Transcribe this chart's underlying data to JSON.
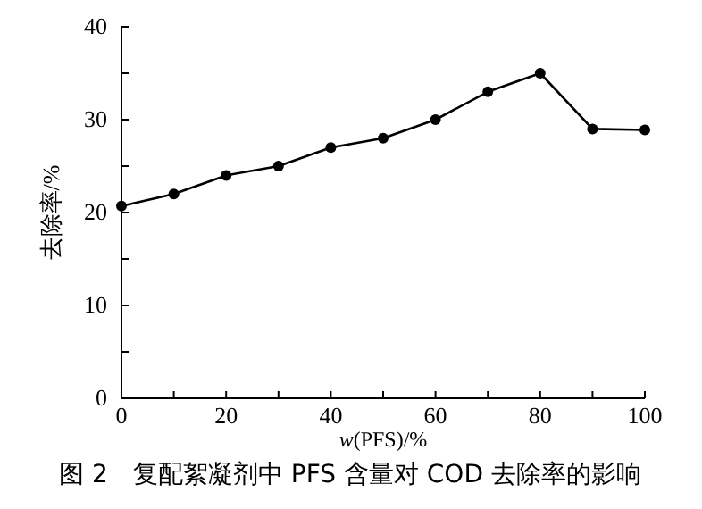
{
  "chart_data": {
    "type": "line",
    "x": [
      0,
      10,
      20,
      30,
      40,
      50,
      60,
      70,
      80,
      90,
      100
    ],
    "series": [
      {
        "color": "#000000",
        "values": [
          20.7,
          22,
          24,
          25,
          27,
          28,
          30,
          33,
          35,
          29,
          28.9
        ]
      }
    ],
    "xlim": [
      0,
      100
    ],
    "ylim": [
      0,
      40
    ],
    "xticks": [
      0,
      {
        "value": 10,
        "label": null
      },
      20,
      {
        "value": 30,
        "label": null
      },
      40,
      {
        "value": 50,
        "label": null
      },
      60,
      {
        "value": 70,
        "label": null
      },
      80,
      {
        "value": 90,
        "label": null
      },
      100
    ],
    "yticks": [
      0,
      {
        "value": 5,
        "label": null
      },
      10,
      {
        "value": 15,
        "label": null
      },
      20,
      {
        "value": 25,
        "label": null
      },
      30,
      {
        "value": 35,
        "label": null
      },
      40
    ],
    "xlabel": "w(PFS)/%",
    "ylabel": "去除率/%",
    "annotations": [
      "图 2　复配絮凝剂中 PFS 含量对 COD 去除率的影响"
    ],
    "marker": "circle",
    "line_style": "solid",
    "grid": false
  }
}
